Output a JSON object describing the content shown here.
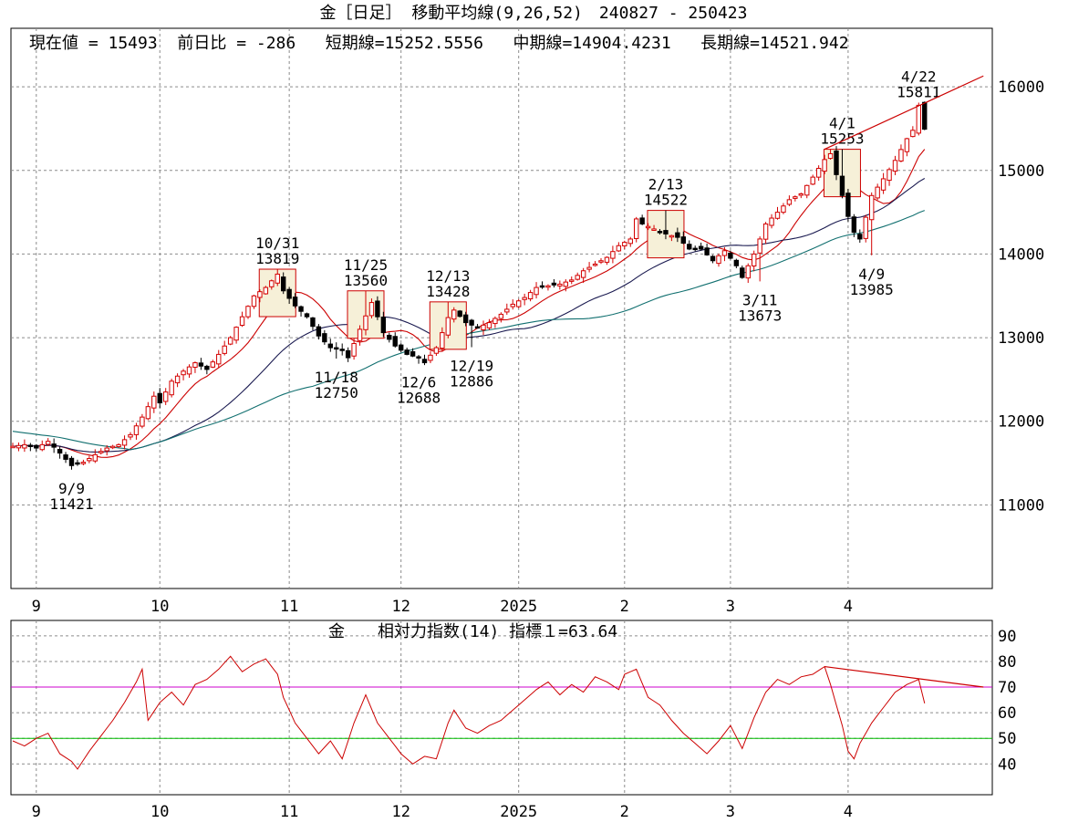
{
  "title": "金［日足］ 移動平均線(9,26,52)　240827 - 250423",
  "info_line": "現在値 = 15493  前日比 = -286   短期線=15252.5556   中期線=14904.4231   長期線=14521.942",
  "colors": {
    "background": "#ffffff",
    "frame": "#000000",
    "grid": "#8c8c8c",
    "candle_up": "#d40000",
    "candle_down": "#000000",
    "ma_short": "#cc0000",
    "ma_mid": "#1a1a50",
    "ma_long": "#127070",
    "rsi_line": "#cc0000",
    "rsi_upper": "#cc00cc",
    "rsi_lower": "#00bb00",
    "annotation_box": "#cc0000",
    "annotation_fill": "#f6f0d8",
    "trend_line": "#cc0000"
  },
  "chart_data": [
    {
      "type": "candlestick",
      "title": "金［日足］ 移動平均線(9,26,52)",
      "period": "240827 - 250423",
      "current_value": 15493,
      "day_change": -286,
      "moving_averages": [
        {
          "name": "短期線",
          "period": 9,
          "last": 15252.5556
        },
        {
          "name": "中期線",
          "period": 26,
          "last": 14904.4231
        },
        {
          "name": "長期線",
          "period": 52,
          "last": 14521.942
        }
      ],
      "ylim": [
        10000,
        16700
      ],
      "yticks": [
        11000,
        12000,
        13000,
        14000,
        15000,
        16000
      ],
      "x_month_labels": [
        "9",
        "10",
        "11",
        "12",
        "2025",
        "2",
        "3",
        "4"
      ],
      "x_month_index": [
        4,
        25,
        47,
        66,
        86,
        104,
        122,
        142
      ],
      "close_path": [
        [
          0,
          11700
        ],
        [
          2,
          11720
        ],
        [
          4,
          11680
        ],
        [
          6,
          11760
        ],
        [
          8,
          11620
        ],
        [
          10,
          11470
        ],
        [
          12,
          11510
        ],
        [
          14,
          11600
        ],
        [
          16,
          11680
        ],
        [
          18,
          11720
        ],
        [
          20,
          11840
        ],
        [
          22,
          12050
        ],
        [
          24,
          12300
        ],
        [
          25,
          12220
        ],
        [
          27,
          12480
        ],
        [
          29,
          12600
        ],
        [
          31,
          12700
        ],
        [
          33,
          12620
        ],
        [
          35,
          12800
        ],
        [
          37,
          13000
        ],
        [
          39,
          13250
        ],
        [
          41,
          13500
        ],
        [
          43,
          13600
        ],
        [
          45,
          13760
        ],
        [
          46,
          13560
        ],
        [
          48,
          13380
        ],
        [
          50,
          13250
        ],
        [
          52,
          13020
        ],
        [
          54,
          12880
        ],
        [
          56,
          12850
        ],
        [
          57,
          12760
        ],
        [
          59,
          13100
        ],
        [
          61,
          13420
        ],
        [
          62,
          13250
        ],
        [
          63,
          13060
        ],
        [
          65,
          12900
        ],
        [
          67,
          12800
        ],
        [
          69,
          12760
        ],
        [
          70,
          12700
        ],
        [
          72,
          12880
        ],
        [
          74,
          13240
        ],
        [
          75,
          13330
        ],
        [
          77,
          13180
        ],
        [
          79,
          13120
        ],
        [
          81,
          13180
        ],
        [
          83,
          13280
        ],
        [
          85,
          13400
        ],
        [
          87,
          13480
        ],
        [
          89,
          13600
        ],
        [
          91,
          13620
        ],
        [
          93,
          13640
        ],
        [
          95,
          13690
        ],
        [
          97,
          13800
        ],
        [
          99,
          13880
        ],
        [
          101,
          13960
        ],
        [
          103,
          14100
        ],
        [
          105,
          14180
        ],
        [
          106,
          14420
        ],
        [
          107,
          14360
        ],
        [
          109,
          14300
        ],
        [
          111,
          14240
        ],
        [
          113,
          14200
        ],
        [
          115,
          14060
        ],
        [
          117,
          14060
        ],
        [
          119,
          13920
        ],
        [
          121,
          14040
        ],
        [
          123,
          13860
        ],
        [
          124,
          13720
        ],
        [
          126,
          14000
        ],
        [
          128,
          14360
        ],
        [
          130,
          14500
        ],
        [
          132,
          14650
        ],
        [
          134,
          14720
        ],
        [
          136,
          14920
        ],
        [
          138,
          15130
        ],
        [
          139,
          15200
        ],
        [
          140,
          14950
        ],
        [
          142,
          14450
        ],
        [
          143,
          14260
        ],
        [
          144,
          14180
        ],
        [
          146,
          14700
        ],
        [
          148,
          14900
        ],
        [
          150,
          15120
        ],
        [
          152,
          15380
        ],
        [
          153,
          15480
        ],
        [
          154,
          15779
        ],
        [
          155,
          15493
        ]
      ],
      "annotations": [
        {
          "date": "9/9",
          "value": 11421,
          "index": 10,
          "pos": "below"
        },
        {
          "date": "10/31",
          "value": 13819,
          "index": 45,
          "pos": "above",
          "box": true
        },
        {
          "date": "11/18",
          "value": 12750,
          "index": 55,
          "pos": "below"
        },
        {
          "date": "11/25",
          "value": 13560,
          "index": 60,
          "pos": "above",
          "box": true
        },
        {
          "date": "12/6",
          "value": 12688,
          "index": 69,
          "pos": "below"
        },
        {
          "date": "12/13",
          "value": 13428,
          "index": 74,
          "pos": "above",
          "box": true
        },
        {
          "date": "12/19",
          "value": 12886,
          "index": 78,
          "pos": "below"
        },
        {
          "date": "2/13",
          "value": 14522,
          "index": 111,
          "pos": "above",
          "box": true
        },
        {
          "date": "3/11",
          "value": 13673,
          "index": 127,
          "pos": "below"
        },
        {
          "date": "4/1",
          "value": 15253,
          "index": 141,
          "pos": "above",
          "box": true
        },
        {
          "date": "4/9",
          "value": 13985,
          "index": 146,
          "pos": "below"
        },
        {
          "date": "4/22",
          "value": 15811,
          "index": 154,
          "pos": "above"
        }
      ],
      "trend_line": [
        [
          138,
          15253
        ],
        [
          165,
          16130
        ]
      ]
    },
    {
      "type": "line",
      "title": "金　　相対力指数(14) 指標１=63.64",
      "indicator": "相対力指数(14)",
      "last_value": 63.64,
      "ylim": [
        28,
        96
      ],
      "yticks": [
        40,
        50,
        60,
        70,
        80,
        90
      ],
      "hlines": [
        {
          "value": 70,
          "color": "rsi_upper"
        },
        {
          "value": 50,
          "color": "rsi_lower"
        }
      ],
      "x_month_labels": [
        "9",
        "10",
        "11",
        "12",
        "2025",
        "2",
        "3",
        "4"
      ],
      "values_path": [
        [
          0,
          49
        ],
        [
          2,
          47
        ],
        [
          4,
          50
        ],
        [
          6,
          52
        ],
        [
          8,
          44
        ],
        [
          10,
          41
        ],
        [
          11,
          38
        ],
        [
          13,
          45
        ],
        [
          15,
          51
        ],
        [
          17,
          57
        ],
        [
          19,
          64
        ],
        [
          21,
          72
        ],
        [
          22,
          77
        ],
        [
          23,
          57
        ],
        [
          25,
          64
        ],
        [
          27,
          68
        ],
        [
          29,
          63
        ],
        [
          31,
          71
        ],
        [
          33,
          73
        ],
        [
          35,
          77
        ],
        [
          37,
          82
        ],
        [
          39,
          76
        ],
        [
          41,
          79
        ],
        [
          43,
          81
        ],
        [
          45,
          75
        ],
        [
          46,
          66
        ],
        [
          48,
          56
        ],
        [
          50,
          50
        ],
        [
          52,
          44
        ],
        [
          54,
          49
        ],
        [
          56,
          42
        ],
        [
          58,
          56
        ],
        [
          60,
          67
        ],
        [
          62,
          56
        ],
        [
          64,
          50
        ],
        [
          66,
          44
        ],
        [
          68,
          40
        ],
        [
          70,
          43
        ],
        [
          72,
          42
        ],
        [
          74,
          56
        ],
        [
          75,
          61
        ],
        [
          77,
          54
        ],
        [
          79,
          52
        ],
        [
          81,
          55
        ],
        [
          83,
          57
        ],
        [
          85,
          61
        ],
        [
          87,
          65
        ],
        [
          89,
          69
        ],
        [
          91,
          72
        ],
        [
          93,
          67
        ],
        [
          95,
          71
        ],
        [
          97,
          68
        ],
        [
          99,
          74
        ],
        [
          101,
          72
        ],
        [
          103,
          69
        ],
        [
          104,
          75
        ],
        [
          106,
          77
        ],
        [
          108,
          66
        ],
        [
          110,
          63
        ],
        [
          112,
          57
        ],
        [
          114,
          52
        ],
        [
          116,
          48
        ],
        [
          118,
          44
        ],
        [
          120,
          49
        ],
        [
          122,
          55
        ],
        [
          124,
          46
        ],
        [
          126,
          58
        ],
        [
          128,
          68
        ],
        [
          130,
          73
        ],
        [
          132,
          71
        ],
        [
          134,
          74
        ],
        [
          136,
          75
        ],
        [
          138,
          78
        ],
        [
          139,
          71
        ],
        [
          141,
          55
        ],
        [
          142,
          45
        ],
        [
          143,
          42
        ],
        [
          144,
          48
        ],
        [
          146,
          56
        ],
        [
          148,
          62
        ],
        [
          150,
          68
        ],
        [
          152,
          71
        ],
        [
          154,
          73
        ],
        [
          155,
          64
        ]
      ],
      "trend_line": [
        [
          138,
          78
        ],
        [
          165,
          70
        ]
      ]
    }
  ]
}
